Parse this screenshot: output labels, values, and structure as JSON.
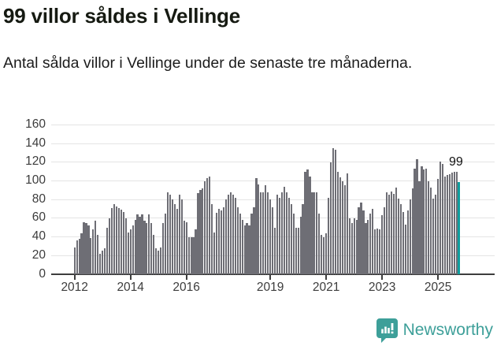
{
  "header": {
    "title": "99 villor såldes i Vellinge",
    "subtitle": "Antal sålda villor i Vellinge under de senaste tre månaderna."
  },
  "chart_data": {
    "type": "bar",
    "title": "99 villor såldes i Vellinge",
    "subtitle": "Antal sålda villor i Vellinge under de senaste tre månaderna.",
    "frequency": "monthly",
    "x_start": "2012-01",
    "x_end": "2025-10",
    "ylim": [
      0,
      160
    ],
    "yticks": [
      0,
      20,
      40,
      60,
      80,
      100,
      120,
      140,
      160
    ],
    "xticks": [
      {
        "label": "2012",
        "year": 2012
      },
      {
        "label": "2014",
        "year": 2014
      },
      {
        "label": "2016",
        "year": 2016
      },
      {
        "label": "2019",
        "year": 2019
      },
      {
        "label": "2021",
        "year": 2021
      },
      {
        "label": "2023",
        "year": 2023
      },
      {
        "label": "2025",
        "year": 2025
      }
    ],
    "grid": "horizontal",
    "legend": "none",
    "bar_color": "#6e6e75",
    "highlight_color": "#0f9e9e",
    "highlight_index": 165,
    "annotation_label": "99",
    "annotation_value": 99,
    "values": [
      29,
      36,
      38,
      44,
      56,
      55,
      52,
      39,
      48,
      57,
      42,
      22,
      25,
      28,
      50,
      60,
      71,
      75,
      73,
      71,
      69,
      67,
      60,
      45,
      48,
      52,
      58,
      64,
      62,
      64,
      57,
      55,
      64,
      55,
      42,
      28,
      25,
      29,
      55,
      65,
      88,
      85,
      80,
      75,
      70,
      85,
      80,
      57,
      56,
      40,
      40,
      40,
      48,
      87,
      90,
      92,
      100,
      103,
      105,
      75,
      45,
      66,
      70,
      68,
      72,
      80,
      85,
      88,
      85,
      82,
      72,
      65,
      58,
      52,
      55,
      52,
      65,
      72,
      103,
      96,
      88,
      88,
      95,
      88,
      80,
      72,
      50,
      85,
      82,
      88,
      94,
      88,
      82,
      75,
      65,
      50,
      50,
      62,
      75,
      110,
      112,
      105,
      88,
      88,
      88,
      65,
      42,
      40,
      44,
      82,
      120,
      135,
      133,
      110,
      104,
      100,
      95,
      108,
      60,
      55,
      60,
      58,
      72,
      77,
      68,
      55,
      58,
      65,
      70,
      48,
      49,
      48,
      63,
      72,
      88,
      85,
      89,
      86,
      93,
      81,
      75,
      67,
      53,
      68,
      80,
      92,
      113,
      123,
      100,
      116,
      112,
      113,
      100,
      93,
      81,
      85,
      102,
      121,
      118,
      105,
      106,
      107,
      109,
      110,
      110,
      99
    ]
  },
  "footer": {
    "brand": "Newsworthy",
    "brand_color": "#3d9f99"
  }
}
